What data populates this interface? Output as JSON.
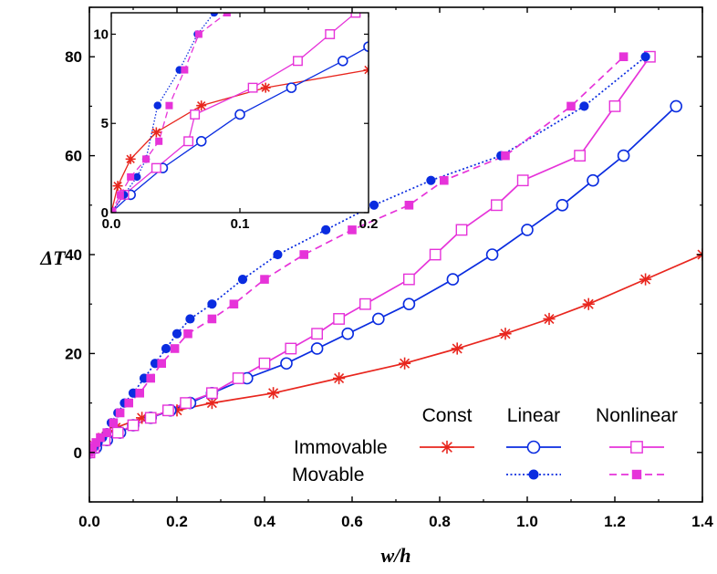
{
  "chart_data": {
    "type": "line",
    "xlabel": "w/h",
    "ylabel": "ΔT",
    "xlim": [
      0,
      1.4
    ],
    "ylim": [
      -10,
      90
    ],
    "xticks": [
      "0.0",
      "0.2",
      "0.4",
      "0.6",
      "0.8",
      "1.0",
      "1.2",
      "1.4"
    ],
    "yticks": [
      "0",
      "20",
      "40",
      "60",
      "80"
    ],
    "legend": {
      "col_headers": [
        "Const",
        "Linear",
        "Nonlinear"
      ],
      "row_labels": [
        "Immovable",
        "Movable"
      ],
      "placement": "bottom-right"
    },
    "series": [
      {
        "name": "Immovable Const",
        "color": "#e8261e",
        "marker": "asterisk",
        "dash": "solid",
        "x": [
          0,
          0.01,
          0.03,
          0.06,
          0.12,
          0.2,
          0.28,
          0.42,
          0.57,
          0.72,
          0.84,
          0.95,
          1.05,
          1.14,
          1.27,
          1.4
        ],
        "y": [
          0,
          1.5,
          3,
          5,
          7,
          8.5,
          10,
          12,
          15,
          18,
          21,
          24,
          27,
          30,
          35,
          40
        ]
      },
      {
        "name": "Immovable Linear",
        "color": "#0a2ce0",
        "marker": "circle-open",
        "dash": "solid",
        "x": [
          0,
          0.015,
          0.04,
          0.07,
          0.1,
          0.14,
          0.185,
          0.23,
          0.28,
          0.36,
          0.45,
          0.52,
          0.59,
          0.66,
          0.73,
          0.83,
          0.92,
          1.0,
          1.08,
          1.15,
          1.22,
          1.34
        ],
        "y": [
          0,
          1,
          2.5,
          4,
          5.5,
          7,
          8.5,
          10,
          12,
          15,
          18,
          21,
          24,
          27,
          30,
          35,
          40,
          45,
          50,
          55,
          60,
          70
        ]
      },
      {
        "name": "Immovable Nonlinear",
        "color": "#e633d9",
        "marker": "square-open",
        "dash": "solid",
        "x": [
          0,
          0.01,
          0.035,
          0.065,
          0.1,
          0.14,
          0.18,
          0.22,
          0.28,
          0.34,
          0.4,
          0.46,
          0.52,
          0.57,
          0.63,
          0.73,
          0.79,
          0.85,
          0.93,
          0.99,
          1.12,
          1.2,
          1.28
        ],
        "y": [
          0,
          1,
          2.5,
          4,
          5.5,
          7,
          8.5,
          10,
          12,
          15,
          18,
          21,
          24,
          27,
          30,
          35,
          40,
          45,
          50,
          55,
          60,
          70,
          80
        ]
      },
      {
        "name": "Movable Linear",
        "color": "#0a2ce0",
        "marker": "circle-filled",
        "dash": "dotted",
        "x": [
          0,
          0.01,
          0.02,
          0.03,
          0.04,
          0.05,
          0.065,
          0.08,
          0.1,
          0.125,
          0.15,
          0.175,
          0.2,
          0.23,
          0.28,
          0.35,
          0.43,
          0.54,
          0.65,
          0.78,
          0.94,
          1.13,
          1.27
        ],
        "y": [
          0,
          1,
          2,
          3,
          4,
          6,
          8,
          10,
          12,
          15,
          18,
          21,
          24,
          27,
          30,
          35,
          40,
          45,
          50,
          55,
          60,
          70,
          80
        ]
      },
      {
        "name": "Movable Nonlinear",
        "color": "#e633d9",
        "marker": "square-filled",
        "dash": "dashed",
        "x": [
          0,
          0.007,
          0.015,
          0.025,
          0.04,
          0.055,
          0.07,
          0.09,
          0.115,
          0.14,
          0.165,
          0.195,
          0.225,
          0.28,
          0.33,
          0.4,
          0.49,
          0.6,
          0.73,
          0.81,
          0.95,
          1.1,
          1.22
        ],
        "y": [
          0,
          1,
          2,
          3,
          4,
          6,
          8,
          10,
          12,
          15,
          18,
          21,
          24,
          27,
          30,
          35,
          40,
          45,
          50,
          55,
          60,
          70,
          80
        ]
      }
    ],
    "inset": {
      "xlim": [
        0,
        0.2
      ],
      "ylim": [
        0,
        11.2
      ],
      "xticks": [
        "0.0",
        "0.1",
        "0.2"
      ],
      "yticks": [
        "0",
        "5",
        "10"
      ],
      "series": [
        {
          "name": "Immovable Const",
          "x": [
            0,
            0.005,
            0.015,
            0.035,
            0.07,
            0.12,
            0.2
          ],
          "y": [
            0,
            1.5,
            3,
            4.5,
            6,
            7,
            8
          ]
        },
        {
          "name": "Immovable Linear",
          "x": [
            0,
            0.015,
            0.04,
            0.07,
            0.1,
            0.14,
            0.18,
            0.2
          ],
          "y": [
            0,
            1,
            2.5,
            4,
            5.5,
            7,
            8.5,
            9.3
          ]
        },
        {
          "name": "Immovable Nonlinear",
          "x": [
            0,
            0.01,
            0.035,
            0.06,
            0.065,
            0.11,
            0.145,
            0.17,
            0.19
          ],
          "y": [
            0,
            1,
            2.5,
            4,
            5.5,
            7,
            8.5,
            10,
            11.2
          ]
        },
        {
          "name": "Movable Linear",
          "x": [
            0,
            0.01,
            0.02,
            0.027,
            0.036,
            0.053,
            0.067,
            0.08
          ],
          "y": [
            0,
            1,
            2,
            3,
            6,
            8,
            10,
            11.2
          ]
        },
        {
          "name": "Movable Nonlinear",
          "x": [
            0,
            0.007,
            0.015,
            0.027,
            0.037,
            0.045,
            0.057,
            0.068,
            0.09
          ],
          "y": [
            0,
            1,
            2,
            3,
            4,
            6,
            8,
            10,
            11.2
          ]
        }
      ]
    }
  }
}
